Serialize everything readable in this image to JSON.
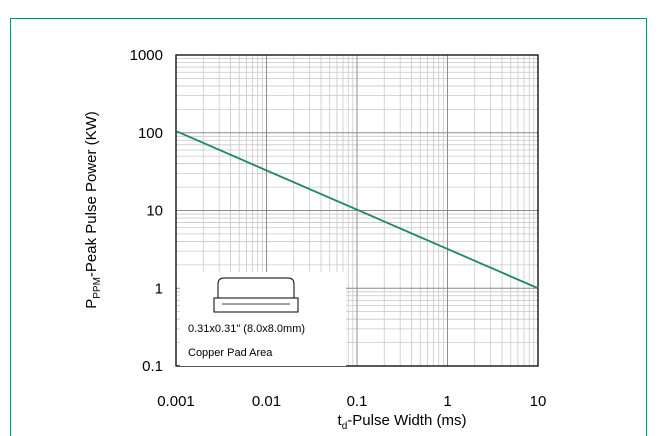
{
  "chart_data": {
    "type": "line",
    "xlabel": "t",
    "xlabel_sub": "d",
    "xlabel_rest": "-Pulse Width (ms)",
    "ylabel": "P",
    "ylabel_sub": "PPM",
    "ylabel_rest": "-Peak Pulse Power (KW)",
    "x_scale": "log",
    "y_scale": "log",
    "xlim": [
      0.001,
      10
    ],
    "ylim": [
      0.1,
      1000
    ],
    "x_ticks": [
      "0.001",
      "0.01",
      "0.1",
      "1",
      "10"
    ],
    "y_ticks": [
      "1000",
      "100",
      "10",
      "1",
      "0.1"
    ],
    "grid": true,
    "series": [
      {
        "color": "#1f8a5f",
        "x": [
          0.001,
          10
        ],
        "y": [
          105,
          1.0
        ]
      }
    ]
  },
  "inset": {
    "dimension_text": "0.31x0.31\" (8.0x8.0mm)",
    "area_text": "Copper Pad Area"
  }
}
